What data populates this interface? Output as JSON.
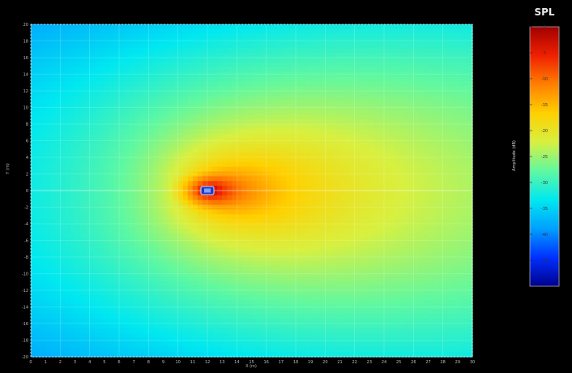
{
  "chart_data": {
    "type": "heatmap",
    "title": "SPL",
    "xlabel": "X (m)",
    "ylabel": "Y (m)",
    "colorbar_label": "Amplitude (dB)",
    "xlim": [
      0,
      30
    ],
    "ylim": [
      -20,
      20
    ],
    "x_ticks": [
      0,
      1,
      2,
      3,
      4,
      5,
      6,
      7,
      8,
      9,
      10,
      11,
      12,
      13,
      14,
      15,
      16,
      17,
      18,
      19,
      20,
      21,
      22,
      23,
      24,
      25,
      26,
      27,
      28,
      29,
      30
    ],
    "y_ticks": [
      20,
      18,
      16,
      14,
      12,
      10,
      8,
      6,
      4,
      2,
      0,
      -2,
      -4,
      -6,
      -8,
      -10,
      -12,
      -14,
      -16,
      -18,
      -20
    ],
    "color_range": [
      -50,
      0
    ],
    "color_ticks": [
      0,
      -5,
      -10,
      -15,
      -20,
      -25,
      -30,
      -35,
      -40,
      -45
    ],
    "colormap": [
      "#00008c",
      "#0030ff",
      "#00a0ff",
      "#00e8f0",
      "#60f8a0",
      "#d8f040",
      "#ffd000",
      "#ff8000",
      "#f02000",
      "#a00000"
    ],
    "source": {
      "x": 12,
      "y": 0
    },
    "grid": true,
    "legend": "colorbar-right"
  }
}
